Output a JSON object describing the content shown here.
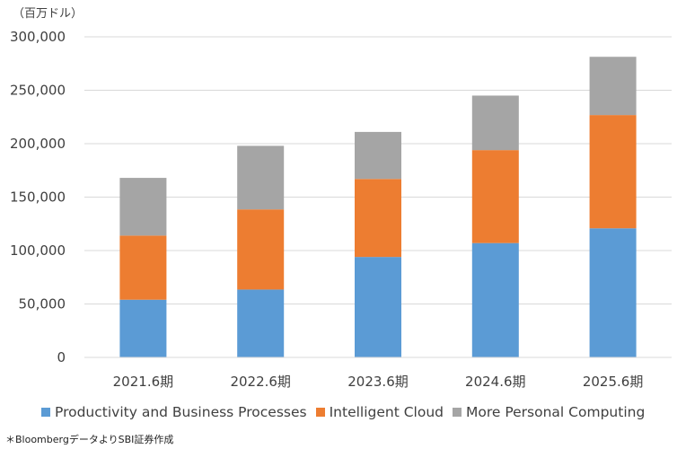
{
  "unit_label": "（百万ドル）",
  "source_note": "＊BloombergデータよりSBI証券作成",
  "chart_data": {
    "type": "bar",
    "stacked": true,
    "categories": [
      "2021.6期",
      "2022.6期",
      "2023.6期",
      "2024.6期",
      "2025.6期"
    ],
    "series": [
      {
        "name": "Productivity and Business Processes",
        "color": "#5B9BD5",
        "values": [
          54000,
          63500,
          94000,
          107000,
          120800
        ]
      },
      {
        "name": "Intelligent Cloud",
        "color": "#ED7D31",
        "values": [
          60000,
          75000,
          73000,
          87000,
          106000
        ]
      },
      {
        "name": "More Personal Computing",
        "color": "#A5A5A5",
        "values": [
          54000,
          59500,
          44000,
          51000,
          54500
        ]
      }
    ],
    "yticks": [
      0,
      50000,
      100000,
      150000,
      200000,
      250000,
      300000
    ],
    "ytick_labels": [
      "0",
      "50,000",
      "100,000",
      "150,000",
      "200,000",
      "250,000",
      "300,000"
    ],
    "ylim": [
      0,
      300000
    ],
    "grid": true,
    "legend_position": "bottom"
  }
}
